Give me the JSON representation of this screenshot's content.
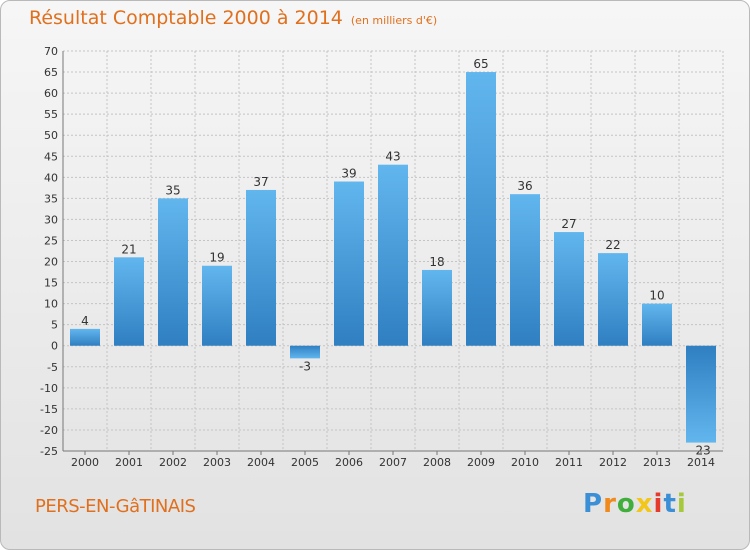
{
  "header": {
    "title": "Résultat Comptable 2000 à 2014",
    "subtitle": "(en milliers d'€)"
  },
  "footer": {
    "commune": "PERS-EN-GâTINAIS",
    "logo_letters": [
      {
        "ch": "P",
        "color": "#3a8fd6"
      },
      {
        "ch": "r",
        "color": "#f08a1c"
      },
      {
        "ch": "o",
        "color": "#3fae3a"
      },
      {
        "ch": "x",
        "color": "#f3c61a"
      },
      {
        "ch": "i",
        "color": "#e53b2c"
      },
      {
        "ch": "t",
        "color": "#3a8fd6"
      },
      {
        "ch": "i",
        "color": "#a5c93a"
      }
    ]
  },
  "chart_data": {
    "type": "bar",
    "categories": [
      "2000",
      "2001",
      "2002",
      "2003",
      "2004",
      "2005",
      "2006",
      "2007",
      "2008",
      "2009",
      "2010",
      "2011",
      "2012",
      "2013",
      "2014"
    ],
    "values": [
      4,
      21,
      35,
      19,
      37,
      -3,
      39,
      43,
      18,
      65,
      36,
      27,
      22,
      10,
      -23
    ],
    "ylim": [
      -25,
      70
    ],
    "ytick_step": 5,
    "grid": true,
    "bar_color": "#3d94d8"
  }
}
